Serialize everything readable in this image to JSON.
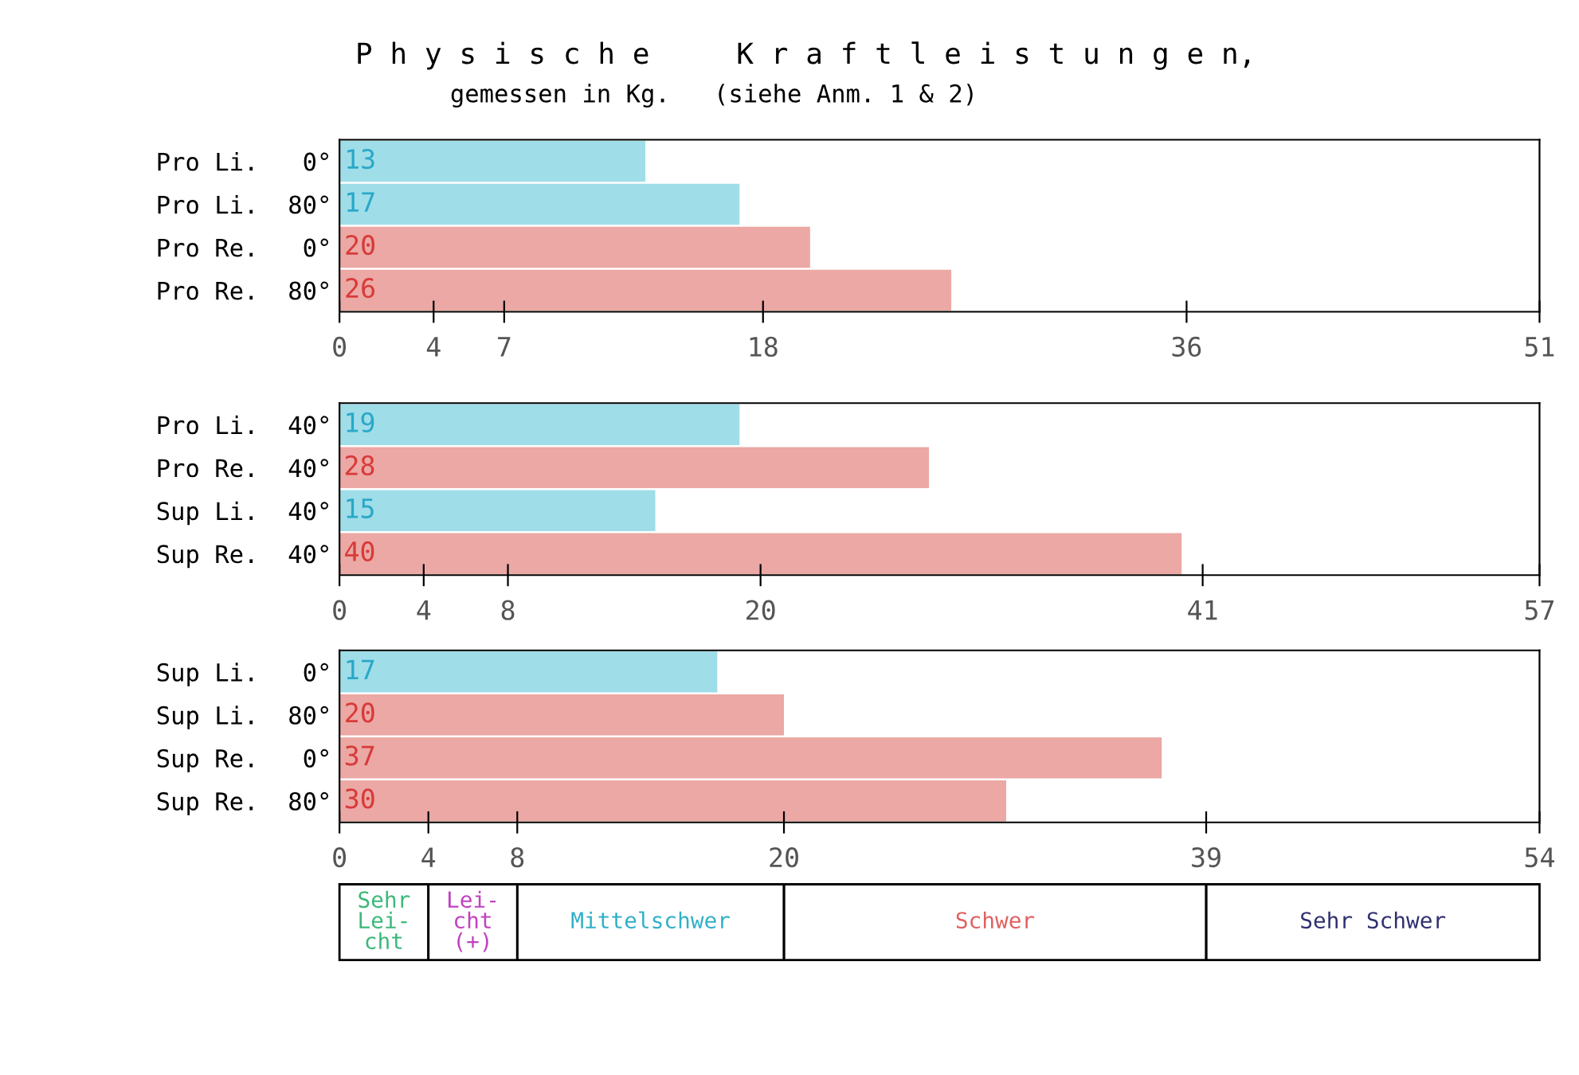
{
  "chart_data": [
    {
      "type": "bar",
      "orientation": "horizontal",
      "title": "P h y s i s c h e     K r a f t l e i s t u n g e n,",
      "subtitle": "gemessen in Kg.   (siehe Anm. 1 & 2)",
      "categories": [
        "Pro Li.   0°",
        "Pro Li.  80°",
        "Pro Re.   0°",
        "Pro Re.  80°"
      ],
      "values": [
        13,
        17,
        20,
        26
      ],
      "colors": [
        "#9fdde8",
        "#9fdde8",
        "#eba8a4",
        "#eba8a4"
      ],
      "data_labels": true,
      "xlim": [
        0,
        51
      ],
      "xticks": [
        0,
        4,
        7,
        18,
        36,
        51
      ]
    },
    {
      "type": "bar",
      "orientation": "horizontal",
      "categories": [
        "Pro Li.  40°",
        "Pro Re.  40°",
        "Sup Li.  40°",
        "Sup Re.  40°"
      ],
      "values": [
        19,
        28,
        15,
        40
      ],
      "colors": [
        "#9fdde8",
        "#eba8a4",
        "#9fdde8",
        "#eba8a4"
      ],
      "data_labels": true,
      "xlim": [
        0,
        57
      ],
      "xticks": [
        0,
        4,
        8,
        20,
        41,
        57
      ]
    },
    {
      "type": "bar",
      "orientation": "horizontal",
      "categories": [
        "Sup Li.   0°",
        "Sup Li.  80°",
        "Sup Re.   0°",
        "Sup Re.  80°"
      ],
      "values": [
        17,
        20,
        37,
        30
      ],
      "colors": [
        "#9fdde8",
        "#eba8a4",
        "#eba8a4",
        "#eba8a4"
      ],
      "data_labels": true,
      "xlim": [
        0,
        54
      ],
      "xticks": [
        0,
        4,
        8,
        20,
        39,
        54
      ],
      "annotations": [
        "Sehr\nLei-\ncht",
        "Lei-\ncht\n(+)",
        "Mittelschwer",
        "Schwer",
        "Sehr Schwer"
      ]
    }
  ]
}
